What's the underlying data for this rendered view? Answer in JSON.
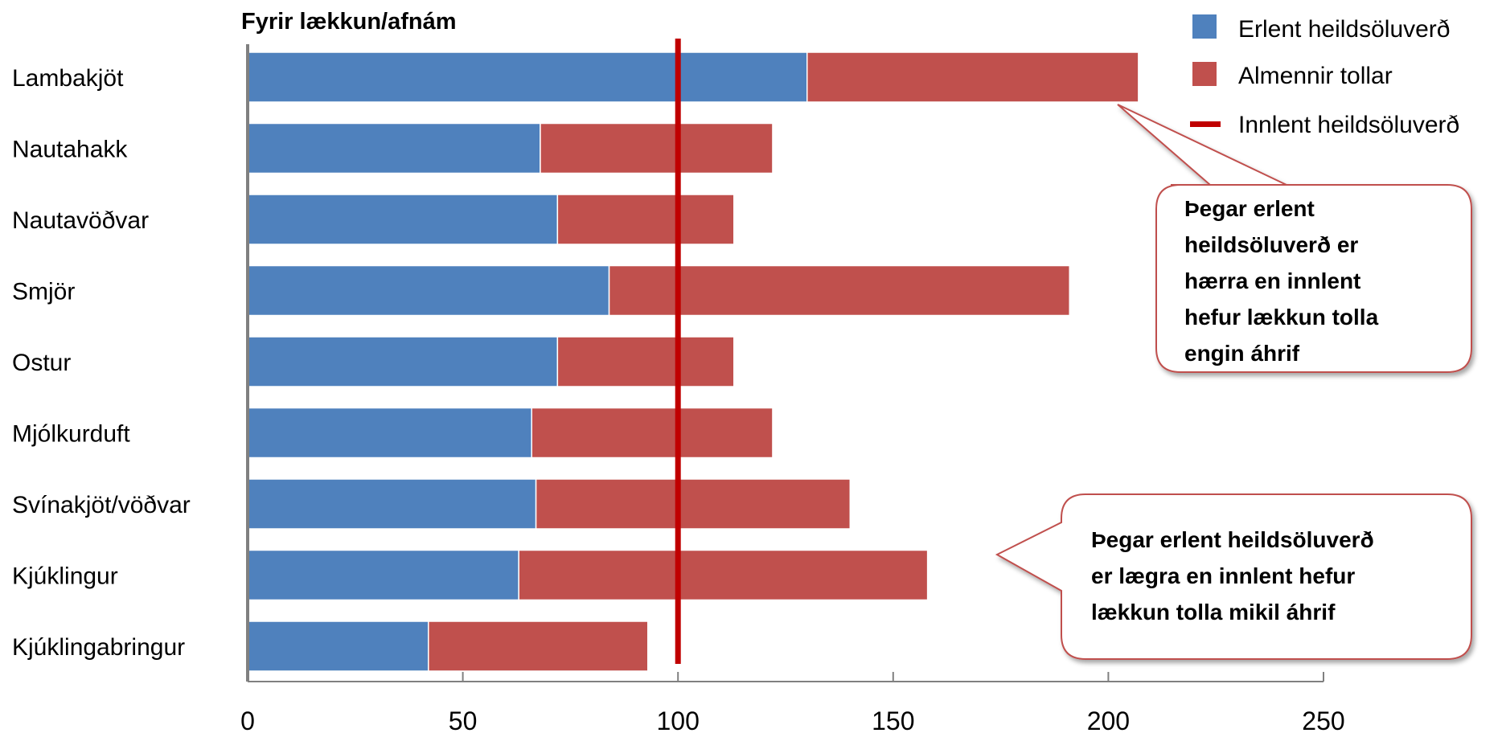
{
  "chart_data": {
    "type": "bar",
    "orientation": "horizontal",
    "stacked": true,
    "title": "Fyrir lækkun/afnám",
    "categories": [
      "Lambakjöt",
      "Nautahakk",
      "Nautavöðvar",
      "Smjör",
      "Ostur",
      "Mjólkurduft",
      "Svínakjöt/vöðvar",
      "Kjúklingur",
      "Kjúklingabringur"
    ],
    "series": [
      {
        "name": "Erlent heildsöluverð",
        "color": "#4f81bd",
        "values": [
          130,
          68,
          72,
          84,
          72,
          66,
          67,
          63,
          42
        ]
      },
      {
        "name": "Almennir tollar",
        "color": "#c0504d",
        "values": [
          77,
          54,
          41,
          107,
          41,
          56,
          73,
          95,
          51
        ]
      }
    ],
    "reference_line": {
      "name": "Innlent heildsöluverð",
      "value": 100,
      "color": "#c00000"
    },
    "xlim": [
      0,
      250
    ],
    "xticks": [
      0,
      50,
      100,
      150,
      200,
      250
    ],
    "grid": false,
    "legend": "top-right",
    "annotations": [
      {
        "lines": [
          "Þegar erlent",
          "heildsöluverð er",
          "hærra en innlent",
          "hefur lækkun tolla",
          "engin áhrif"
        ],
        "points_to": "Lambakjöt"
      },
      {
        "lines": [
          "Þegar erlent heildsöluverð",
          "er lægra en innlent hefur",
          "lækkun tolla mikil áhrif"
        ],
        "points_to": "Kjúklingur"
      }
    ]
  }
}
